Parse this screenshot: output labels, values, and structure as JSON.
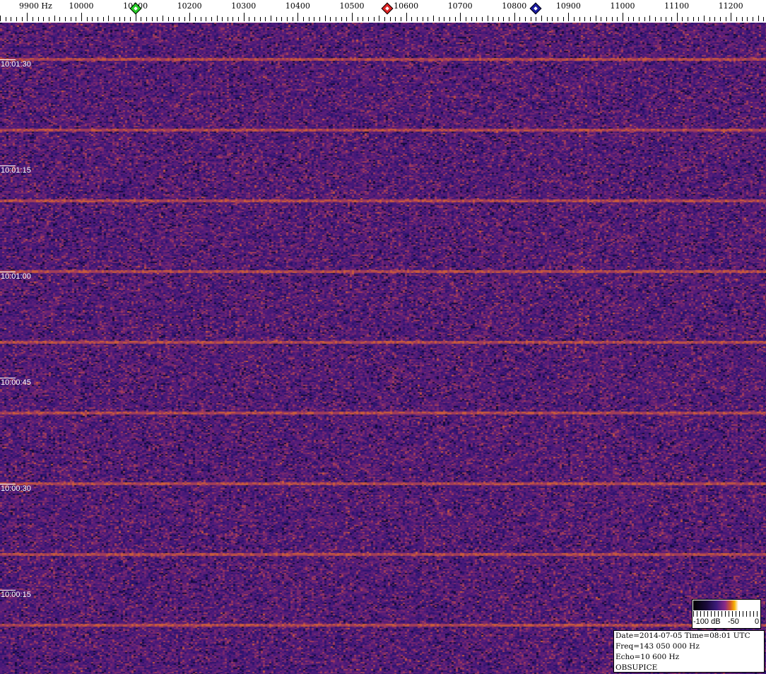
{
  "frequency_axis": {
    "unit": "Hz",
    "labels": [
      "9900",
      "10000",
      "10100",
      "10200",
      "10300",
      "10400",
      "10500",
      "10600",
      "10700",
      "10800",
      "10900",
      "11000",
      "11100",
      "11200"
    ],
    "markers": [
      {
        "name": "green-marker",
        "freq": 10100,
        "color": "#22cc22"
      },
      {
        "name": "red-marker",
        "freq": 10565,
        "color": "#dd2222"
      },
      {
        "name": "blue-marker",
        "freq": 10840,
        "color": "#1a1aa0"
      }
    ]
  },
  "time_axis": {
    "labels": [
      "10:01:30",
      "10:01:15",
      "10:01:00",
      "10:00:45",
      "10:00:30",
      "10:00:15"
    ]
  },
  "colorbar": {
    "min_label": "-100 dB",
    "mid_label": "-50",
    "max_label": "0"
  },
  "info": {
    "date_line": "Date=2014-07-05 Time=08:01 UTC",
    "freq_line": "Freq=143 050 000 Hz",
    "echo_line": "Echo=10 600 Hz",
    "station": "OBSUPICE"
  }
}
